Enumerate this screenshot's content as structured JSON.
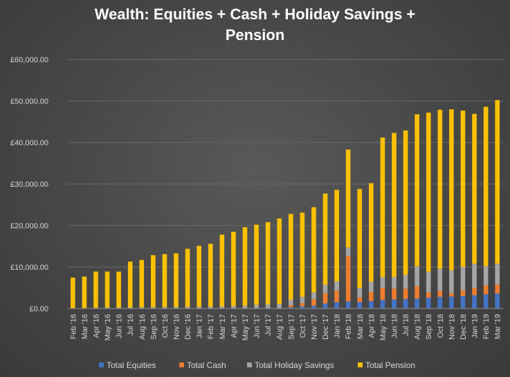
{
  "chart_data": {
    "type": "bar",
    "stacked": true,
    "title": "Wealth: Equities + Cash + Holiday Savings + Pension",
    "title_lines": [
      "Wealth: Equities + Cash + Holiday Savings +",
      "Pension"
    ],
    "xlabel": "",
    "ylabel": "",
    "ylim": [
      0,
      60000
    ],
    "yticks": [
      0,
      10000,
      20000,
      30000,
      40000,
      50000,
      60000
    ],
    "ytick_labels": [
      "£0.00",
      "£10,000.00",
      "£20,000.00",
      "£30,000.00",
      "£40,000.00",
      "£50,000.00",
      "£60,000.00"
    ],
    "grid": true,
    "legend_position": "bottom",
    "categories": [
      "Feb '16",
      "Mar '16",
      "Apr '16",
      "May '16",
      "Jun '16",
      "Jul '16",
      "Aug '16",
      "Sep '16",
      "Oct '16",
      "Nov '16",
      "Dec '16",
      "Jan '17",
      "Feb '17",
      "Mar '17",
      "Apr '17",
      "May '17",
      "Jun '17",
      "Jul '17",
      "Aug '17",
      "Sep '17",
      "Oct '17",
      "Nov '17",
      "Dec '17",
      "Jan '18",
      "Feb '18",
      "Mar '18",
      "Apr '18",
      "May '18",
      "Jun '18",
      "Jul '18",
      "Aug '18",
      "Sep '18",
      "Oct '18",
      "Nov '18",
      "Dec '18",
      "Jan '19",
      "Feb '19",
      "Mar '19"
    ],
    "series": [
      {
        "name": "Total Equities",
        "color": "#4472c4",
        "values": [
          0,
          0,
          0,
          0,
          0,
          0,
          0,
          0,
          0,
          0,
          0,
          0,
          0,
          0,
          0,
          0,
          0,
          0,
          0,
          300,
          500,
          700,
          1200,
          1500,
          1700,
          1500,
          1800,
          2000,
          2200,
          2300,
          2400,
          2600,
          2800,
          2900,
          3000,
          3200,
          3400,
          3600
        ]
      },
      {
        "name": "Total Cash",
        "color": "#ed7d31",
        "values": [
          0,
          0,
          0,
          0,
          0,
          0,
          0,
          0,
          0,
          0,
          0,
          0,
          0,
          0,
          0,
          0,
          0,
          0,
          0,
          500,
          800,
          1500,
          2500,
          2800,
          11000,
          1200,
          2200,
          3000,
          2600,
          2500,
          3000,
          1300,
          1500,
          800,
          1400,
          1800,
          2200,
          2200
        ]
      },
      {
        "name": "Total Holiday Savings",
        "color": "#a5a5a5",
        "values": [
          100,
          150,
          200,
          250,
          250,
          250,
          300,
          300,
          350,
          350,
          400,
          400,
          450,
          500,
          600,
          700,
          900,
          1000,
          1100,
          1300,
          1500,
          1700,
          2000,
          2200,
          2000,
          2300,
          2500,
          2600,
          2800,
          3300,
          4800,
          5000,
          5300,
          5500,
          5600,
          5800,
          4600,
          5000
        ]
      },
      {
        "name": "Total Pension",
        "color": "#ffc000",
        "values": [
          7350,
          7550,
          8700,
          8650,
          8650,
          11050,
          11400,
          12550,
          12750,
          12950,
          14000,
          14700,
          15150,
          17300,
          17900,
          18900,
          19300,
          19800,
          20600,
          20700,
          20300,
          20500,
          22000,
          22100,
          23600,
          23800,
          23700,
          33600,
          34700,
          34800,
          36600,
          38300,
          38300,
          38800,
          37700,
          36100,
          38400,
          39400
        ]
      }
    ]
  }
}
